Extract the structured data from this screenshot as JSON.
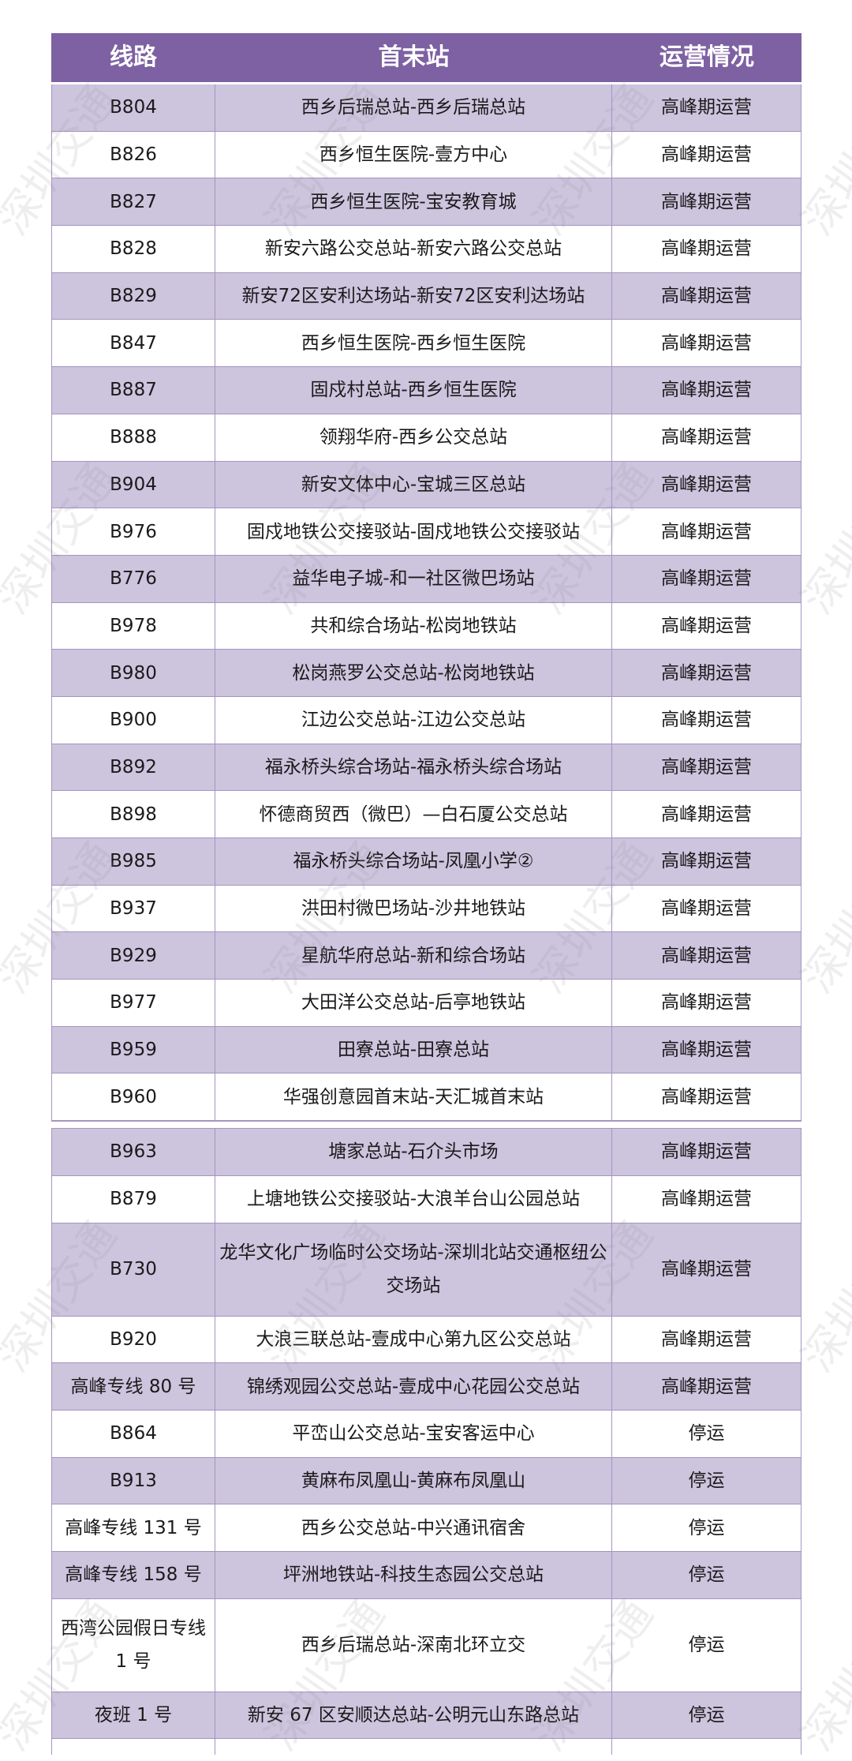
{
  "header": {
    "col_route": "线路",
    "col_stops": "首末站",
    "col_status": "运营情况"
  },
  "watermark": "深圳交通",
  "colors": {
    "header": "#7d61a2",
    "row_alt": "#cdc4de",
    "border": "#a495bf"
  },
  "section1": [
    [
      "B804",
      "西乡后瑞总站-西乡后瑞总站",
      "高峰期运营"
    ],
    [
      "B826",
      "西乡恒生医院-壹方中心",
      "高峰期运营"
    ],
    [
      "B827",
      "西乡恒生医院-宝安教育城",
      "高峰期运营"
    ],
    [
      "B828",
      "新安六路公交总站-新安六路公交总站",
      "高峰期运营"
    ],
    [
      "B829",
      "新安72区安利达场站-新安72区安利达场站",
      "高峰期运营"
    ],
    [
      "B847",
      "西乡恒生医院-西乡恒生医院",
      "高峰期运营"
    ],
    [
      "B887",
      "固戍村总站-西乡恒生医院",
      "高峰期运营"
    ],
    [
      "B888",
      "领翔华府-西乡公交总站",
      "高峰期运营"
    ],
    [
      "B904",
      "新安文体中心-宝城三区总站",
      "高峰期运营"
    ],
    [
      "B976",
      "固戍地铁公交接驳站-固戍地铁公交接驳站",
      "高峰期运营"
    ],
    [
      "B776",
      "益华电子城-和一社区微巴场站",
      "高峰期运营"
    ],
    [
      "B978",
      "共和综合场站-松岗地铁站",
      "高峰期运营"
    ],
    [
      "B980",
      "松岗燕罗公交总站-松岗地铁站",
      "高峰期运营"
    ],
    [
      "B900",
      "江边公交总站-江边公交总站",
      "高峰期运营"
    ],
    [
      "B892",
      "福永桥头综合场站-福永桥头综合场站",
      "高峰期运营"
    ],
    [
      "B898",
      "怀德商贸西（微巴）—白石厦公交总站",
      "高峰期运营"
    ],
    [
      "B985",
      "福永桥头综合场站-凤凰小学②",
      "高峰期运营"
    ],
    [
      "B937",
      "洪田村微巴场站-沙井地铁站",
      "高峰期运营"
    ],
    [
      "B929",
      "星航华府总站-新和综合场站",
      "高峰期运营"
    ],
    [
      "B977",
      "大田洋公交总站-后亭地铁站",
      "高峰期运营"
    ],
    [
      "B959",
      "田寮总站-田寮总站",
      "高峰期运营"
    ],
    [
      "B960",
      "华强创意园首末站-天汇城首末站",
      "高峰期运营"
    ]
  ],
  "section2": [
    [
      "B963",
      "塘家总站-石介头市场",
      "高峰期运营"
    ],
    [
      "B879",
      "上塘地铁公交接驳站-大浪羊台山公园总站",
      "高峰期运营"
    ],
    [
      "B730",
      "龙华文化广场临时公交场站-深圳北站交通枢纽公交场站",
      "高峰期运营"
    ],
    [
      "B920",
      "大浪三联总站-壹成中心第九区公交总站",
      "高峰期运营"
    ],
    [
      "高峰专线 80 号",
      "锦绣观园公交总站-壹成中心花园公交总站",
      "高峰期运营"
    ],
    [
      "B864",
      "平峦山公交总站-宝安客运中心",
      "停运"
    ],
    [
      "B913",
      "黄麻布凤凰山-黄麻布凤凰山",
      "停运"
    ],
    [
      "高峰专线 131 号",
      "西乡公交总站-中兴通讯宿舍",
      "停运"
    ],
    [
      "高峰专线 158 号",
      "坪洲地铁站-科技生态园公交总站",
      "停运"
    ],
    [
      "西湾公园假日专线 1 号",
      "西乡后瑞总站-深南北环立交",
      "停运"
    ],
    [
      "夜班 1 号",
      "新安 67 区安顺达总站-公明元山东路总站",
      "停运"
    ]
  ]
}
